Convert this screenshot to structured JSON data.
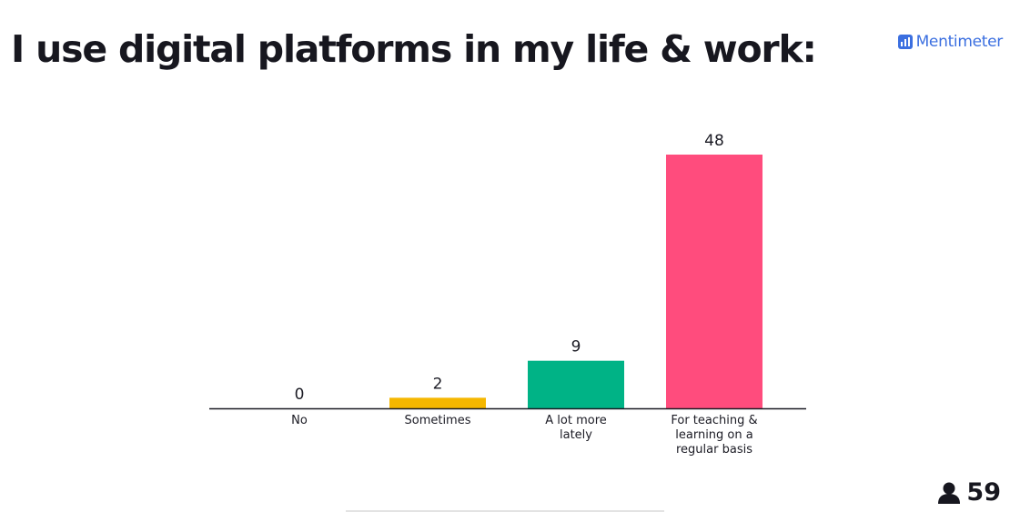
{
  "slide": {
    "title": "I use digital platforms in my life & work:",
    "brand": "Mentimeter",
    "brand_icon": "mentimeter-logo-icon",
    "participants": "59",
    "participants_icon": "person-icon"
  },
  "chart_data": {
    "type": "bar",
    "title": "",
    "xlabel": "",
    "ylabel": "",
    "categories": [
      "No",
      "Sometimes",
      "A lot more lately",
      "For teaching & learning on a regular basis"
    ],
    "category_lines": [
      [
        "No"
      ],
      [
        "Sometimes"
      ],
      [
        "A lot more",
        "lately"
      ],
      [
        "For teaching &",
        "learning on a",
        "regular basis"
      ]
    ],
    "values": [
      0,
      2,
      9,
      48
    ],
    "colors": [
      "#3a3ad6",
      "#f5b700",
      "#00b386",
      "#ff4c7d"
    ],
    "ylim": [
      0,
      48
    ],
    "grid": false,
    "legend": "none"
  }
}
